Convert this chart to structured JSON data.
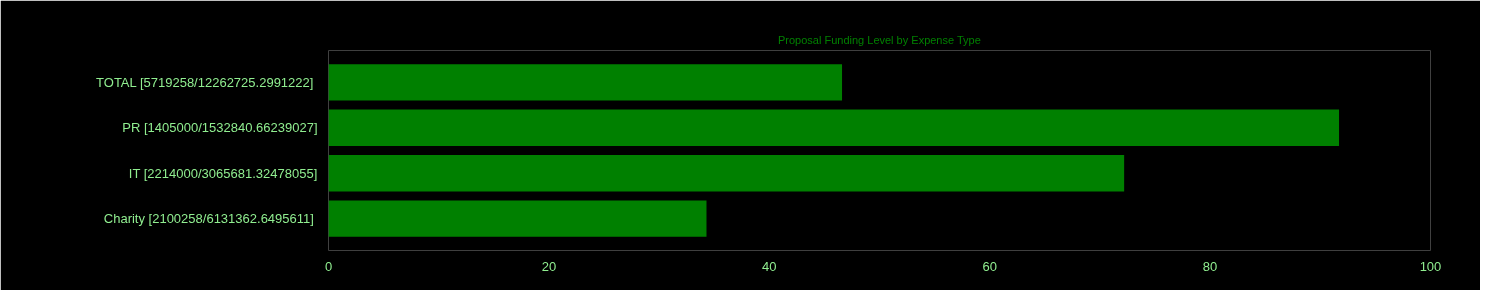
{
  "chart_data": {
    "type": "bar",
    "orientation": "horizontal",
    "title": "Proposal Funding Level by Expense Type",
    "categories": [
      "TOTAL  [5719258/12262725.2991222]",
      "PR [1405000/1532840.66239027]",
      "IT [2214000/3065681.32478055]",
      "Charity  [2100258/6131362.6495611]"
    ],
    "values": [
      46.6,
      91.7,
      72.2,
      34.3
    ],
    "color": "#008000",
    "xlim": [
      0,
      100
    ],
    "xticks": [
      0,
      20,
      40,
      60,
      80,
      100
    ],
    "grid": false
  }
}
